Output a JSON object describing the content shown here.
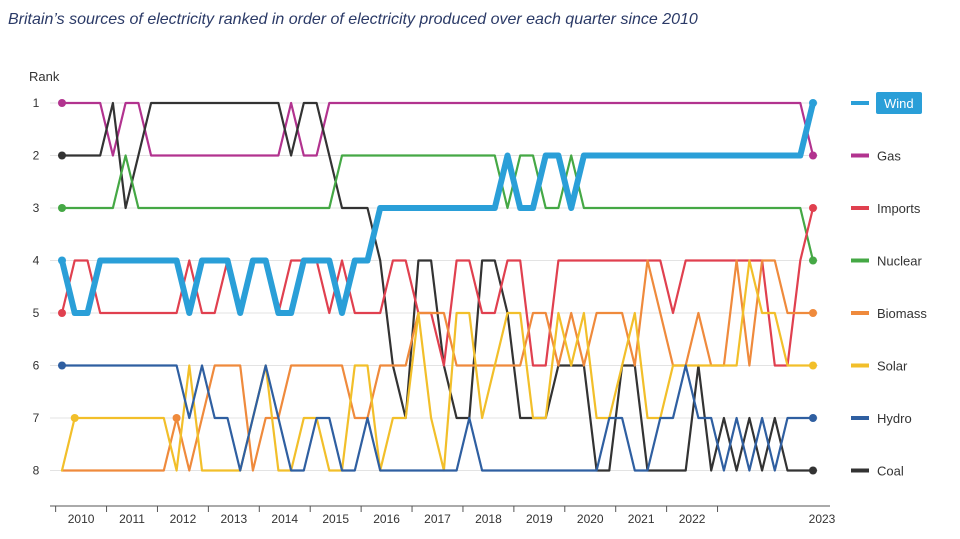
{
  "chart_data": {
    "type": "line",
    "title": "Britain’s sources of electricity ranked in order of electricity produced over each quarter since 2010",
    "ylabel": "Rank",
    "xlabel": "",
    "y_ticks": [
      "1",
      "2",
      "3",
      "4",
      "5",
      "6",
      "7",
      "8"
    ],
    "ylim": [
      1,
      8
    ],
    "y_inverted": true,
    "x_tick_labels": [
      "2010",
      "2011",
      "2012",
      "2013",
      "2014",
      "2015",
      "2016",
      "2017",
      "2018",
      "2019",
      "2020",
      "2021",
      "2022",
      "2023"
    ],
    "x_start": 2010.0,
    "x_step_years": 0.25,
    "grid": "horizontal",
    "legend_placement": "right",
    "highlight_series": "Wind",
    "series": [
      {
        "name": "Gas",
        "color": "#b2338f",
        "ranks": [
          1,
          1,
          1,
          1,
          2,
          1,
          1,
          2,
          2,
          2,
          2,
          2,
          2,
          2,
          2,
          2,
          2,
          2,
          1,
          2,
          2,
          1,
          1,
          1,
          1,
          1,
          1,
          1,
          1,
          1,
          1,
          1,
          1,
          1,
          1,
          1,
          1,
          1,
          1,
          1,
          1,
          1,
          1,
          1,
          1,
          1,
          1,
          1,
          1,
          1,
          1,
          1,
          1,
          1,
          1,
          1,
          1,
          1,
          1,
          2
        ]
      },
      {
        "name": "Coal",
        "color": "#333333",
        "ranks": [
          2,
          2,
          2,
          2,
          1,
          3,
          2,
          1,
          1,
          1,
          1,
          1,
          1,
          1,
          1,
          1,
          1,
          1,
          2,
          1,
          1,
          2,
          3,
          3,
          3,
          4,
          6,
          7,
          4,
          4,
          6,
          7,
          7,
          4,
          4,
          5,
          7,
          7,
          7,
          6,
          6,
          6,
          8,
          8,
          6,
          6,
          8,
          8,
          8,
          8,
          6,
          8,
          7,
          8,
          7,
          8,
          7,
          8,
          8,
          8
        ]
      },
      {
        "name": "Nuclear",
        "color": "#45a845",
        "ranks": [
          3,
          3,
          3,
          3,
          3,
          2,
          3,
          3,
          3,
          3,
          3,
          3,
          3,
          3,
          3,
          3,
          3,
          3,
          3,
          3,
          3,
          3,
          2,
          2,
          2,
          2,
          2,
          2,
          2,
          2,
          2,
          2,
          2,
          2,
          2,
          3,
          2,
          2,
          3,
          3,
          2,
          3,
          3,
          3,
          3,
          3,
          3,
          3,
          3,
          3,
          3,
          3,
          3,
          3,
          3,
          3,
          3,
          3,
          3,
          4
        ]
      },
      {
        "name": "Wind",
        "color": "#2a9fd8",
        "ranks": [
          4,
          5,
          5,
          4,
          4,
          4,
          4,
          4,
          4,
          4,
          5,
          4,
          4,
          4,
          5,
          4,
          4,
          5,
          5,
          4,
          4,
          4,
          5,
          4,
          4,
          3,
          3,
          3,
          3,
          3,
          3,
          3,
          3,
          3,
          3,
          2,
          3,
          3,
          2,
          2,
          3,
          2,
          2,
          2,
          2,
          2,
          2,
          2,
          2,
          2,
          2,
          2,
          2,
          2,
          2,
          2,
          2,
          2,
          2,
          1
        ]
      },
      {
        "name": "Imports",
        "color": "#e0404f",
        "ranks": [
          5,
          4,
          4,
          5,
          5,
          5,
          5,
          5,
          5,
          5,
          4,
          5,
          5,
          4,
          5,
          4,
          4,
          5,
          4,
          4,
          4,
          5,
          4,
          5,
          5,
          5,
          4,
          4,
          5,
          5,
          6,
          4,
          4,
          5,
          5,
          4,
          4,
          6,
          6,
          4,
          4,
          4,
          4,
          4,
          4,
          4,
          4,
          4,
          5,
          4,
          4,
          4,
          4,
          4,
          4,
          4,
          6,
          6,
          4,
          3
        ]
      },
      {
        "name": "Biomass",
        "color": "#ef8a3c",
        "ranks": [
          8,
          8,
          8,
          8,
          8,
          8,
          8,
          8,
          8,
          7,
          8,
          7,
          6,
          6,
          6,
          8,
          7,
          7,
          6,
          6,
          6,
          6,
          6,
          7,
          7,
          6,
          6,
          6,
          5,
          5,
          5,
          6,
          6,
          6,
          6,
          6,
          6,
          5,
          5,
          6,
          5,
          6,
          5,
          5,
          5,
          6,
          4,
          5,
          6,
          6,
          5,
          6,
          6,
          4,
          6,
          4,
          4,
          5,
          5,
          5
        ]
      },
      {
        "name": "Solar",
        "color": "#f2bf2a",
        "ranks": [
          8,
          7,
          7,
          7,
          7,
          7,
          7,
          7,
          7,
          8,
          6,
          8,
          8,
          8,
          8,
          7,
          6,
          8,
          8,
          7,
          7,
          8,
          8,
          6,
          6,
          8,
          7,
          7,
          5,
          7,
          8,
          5,
          5,
          7,
          6,
          5,
          5,
          7,
          7,
          5,
          6,
          5,
          7,
          7,
          6,
          5,
          7,
          7,
          6,
          6,
          6,
          6,
          6,
          6,
          4,
          5,
          5,
          6,
          6,
          6
        ]
      },
      {
        "name": "Hydro",
        "color": "#2f5fa1",
        "ranks": [
          6,
          6,
          6,
          6,
          6,
          6,
          6,
          6,
          6,
          6,
          7,
          6,
          7,
          7,
          8,
          7,
          6,
          7,
          8,
          8,
          7,
          7,
          8,
          8,
          7,
          8,
          8,
          8,
          8,
          8,
          8,
          8,
          7,
          8,
          8,
          8,
          8,
          8,
          8,
          8,
          8,
          8,
          8,
          7,
          7,
          8,
          8,
          7,
          7,
          6,
          7,
          7,
          8,
          7,
          8,
          7,
          8,
          7,
          7,
          7
        ]
      }
    ],
    "end_markers": [
      {
        "name": "Wind",
        "rank": 1
      },
      {
        "name": "Gas",
        "rank": 2
      },
      {
        "name": "Imports",
        "rank": 3
      },
      {
        "name": "Nuclear",
        "rank": 4
      },
      {
        "name": "Biomass",
        "rank": 5
      },
      {
        "name": "Solar",
        "rank": 6
      },
      {
        "name": "Hydro",
        "rank": 7
      },
      {
        "name": "Coal",
        "rank": 8
      }
    ],
    "start_markers": [
      {
        "name": "Gas",
        "rank": 1
      },
      {
        "name": "Coal",
        "rank": 2
      },
      {
        "name": "Nuclear",
        "rank": 3
      },
      {
        "name": "Wind",
        "rank": 4
      },
      {
        "name": "Imports",
        "rank": 5
      },
      {
        "name": "Hydro",
        "rank": 6
      },
      {
        "name": "Solar",
        "rank": 7,
        "quarter_index": 1
      },
      {
        "name": "Biomass",
        "rank": 7,
        "quarter_index": 9
      }
    ]
  }
}
